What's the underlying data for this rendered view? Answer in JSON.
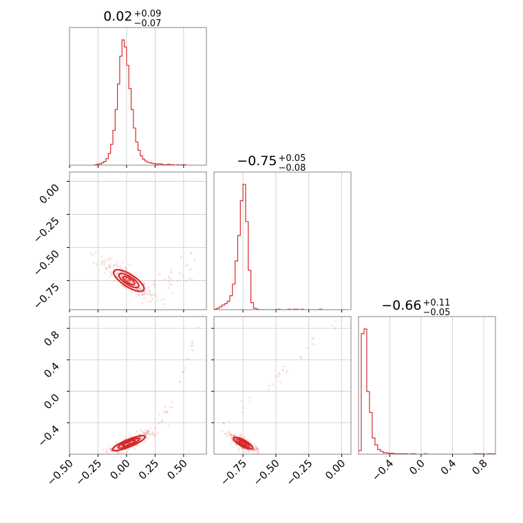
{
  "chart_data": {
    "type": "corner",
    "color": "#d62728",
    "grid": true,
    "parameters": [
      {
        "median": "0.02",
        "plus": "+0.09",
        "minus": "−0.07",
        "range": [
          -0.5,
          0.7
        ]
      },
      {
        "median": "−0.75",
        "plus": "+0.05",
        "minus": "−0.08",
        "range": [
          -0.97,
          0.07
        ]
      },
      {
        "median": "−0.66",
        "plus": "+0.11",
        "minus": "−0.05",
        "range": [
          -0.8,
          0.95
        ]
      }
    ],
    "bottom_ticks": [
      {
        "values": [
          -0.5,
          -0.25,
          0.0,
          0.25,
          0.5
        ],
        "labels": [
          "−0.50",
          "−0.25",
          "0.00",
          "0.25",
          "0.50"
        ]
      },
      {
        "values": [
          -0.75,
          -0.5,
          -0.25,
          0.0
        ],
        "labels": [
          "−0.75",
          "−0.50",
          "−0.25",
          "0.00"
        ]
      },
      {
        "values": [
          -0.4,
          0.0,
          0.4,
          0.8
        ],
        "labels": [
          "−0.4",
          "0.0",
          "0.4",
          "0.8"
        ]
      }
    ],
    "left_ticks": [
      null,
      {
        "values": [
          0.0,
          -0.25,
          -0.5,
          -0.75
        ],
        "labels": [
          "0.00",
          "−0.25",
          "−0.50",
          "−0.75"
        ]
      },
      {
        "values": [
          0.8,
          0.4,
          0.0,
          -0.4
        ],
        "labels": [
          "0.8",
          "0.4",
          "0.0",
          "−0.4"
        ]
      }
    ],
    "histograms": [
      {
        "edges_start": -0.28,
        "bin_width": 0.02,
        "counts": [
          1,
          2,
          3,
          5,
          8,
          14,
          25,
          45,
          75,
          120,
          175,
          235,
          270,
          255,
          215,
          165,
          120,
          80,
          50,
          32,
          20,
          13,
          9,
          6,
          5,
          4,
          3,
          2,
          3,
          2,
          1,
          1,
          2,
          1,
          1,
          0,
          1,
          0,
          1,
          1
        ]
      },
      {
        "edges_start": -0.97,
        "bin_width": 0.02,
        "counts": [
          1,
          3,
          6,
          10,
          13,
          18,
          30,
          55,
          105,
          160,
          235,
          270,
          190,
          85,
          15,
          3,
          1,
          0,
          0,
          0,
          0,
          0,
          0,
          0,
          1,
          0,
          0,
          0,
          1,
          0,
          1,
          1,
          0,
          1,
          0,
          0,
          0,
          0,
          0,
          0,
          1
        ]
      },
      {
        "edges_start": -0.8,
        "bin_width": 0.035,
        "counts": [
          8,
          260,
          270,
          135,
          90,
          35,
          20,
          10,
          6,
          3,
          3,
          2,
          2,
          1,
          1,
          1,
          1,
          1,
          0,
          1,
          1,
          0,
          0,
          0,
          1,
          0,
          0,
          0,
          0,
          0,
          0,
          0,
          0,
          0,
          0,
          0,
          0,
          0,
          0,
          0,
          0,
          0,
          1,
          1,
          1,
          1,
          0,
          1,
          1,
          1
        ]
      }
    ]
  }
}
